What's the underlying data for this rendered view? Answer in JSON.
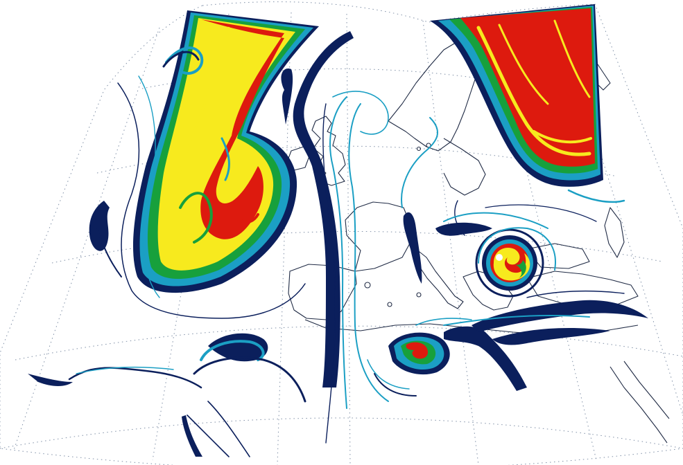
{
  "map": {
    "background_color": "#ffffff",
    "projection": "conic",
    "graticule": {
      "style": "dotted",
      "color": "#7f8fa6"
    },
    "coastline_color": "#1f2a44",
    "tracer_colors": {
      "level_1": "#0b1f5c",
      "level_2": "#1b9fc4",
      "level_3": "#17a03c",
      "level_4": "#f7ea1e",
      "level_5": "#dd1a0e"
    },
    "features": [
      "atlantic-tongue",
      "northeast-band",
      "central-streamer",
      "balkan-vortex",
      "mediterranean-vortex"
    ]
  }
}
